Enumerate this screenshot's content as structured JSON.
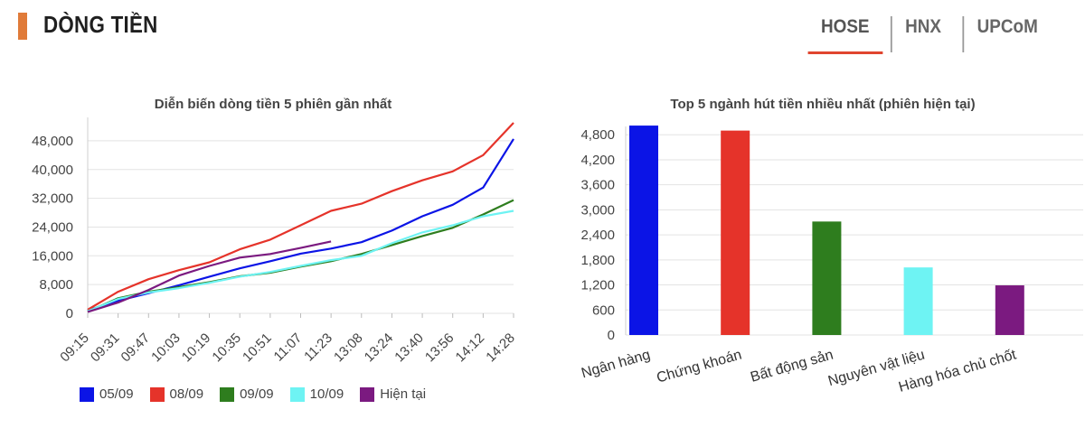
{
  "header": {
    "title": "DÒNG TIỀN",
    "tabs": [
      {
        "label": "HOSE",
        "active": true
      },
      {
        "label": "HNX",
        "active": false
      },
      {
        "label": "UPCoM",
        "active": false
      }
    ]
  },
  "colors": {
    "accent": "#e07b39",
    "active_tab": "#e0452f"
  },
  "chart_data": [
    {
      "type": "line",
      "title": "Diễn biến dòng tiền 5 phiên gần nhất",
      "xlabel": "",
      "ylabel": "",
      "ylim": [
        0,
        52000
      ],
      "yticks": [
        0,
        8000,
        16000,
        24000,
        32000,
        40000,
        48000
      ],
      "ytick_labels": [
        "0",
        "8,000",
        "16,000",
        "24,000",
        "32,000",
        "40,000",
        "48,000"
      ],
      "x_tick_labels": [
        "09:15",
        "09:31",
        "09:47",
        "10:03",
        "10:19",
        "10:35",
        "10:51",
        "11:07",
        "11:23",
        "13:08",
        "13:24",
        "13:40",
        "13:56",
        "14:12",
        "14:28"
      ],
      "legend": "bottom",
      "series": [
        {
          "name": "05/09",
          "color": "#0b14e6",
          "values": [
            800,
            3500,
            5600,
            7800,
            10200,
            12500,
            14500,
            16600,
            18000,
            19800,
            23000,
            27000,
            30200,
            35000,
            48500
          ]
        },
        {
          "name": "08/09",
          "color": "#e5332a",
          "values": [
            1000,
            6000,
            9500,
            12000,
            14200,
            17800,
            20500,
            24500,
            28500,
            30500,
            34000,
            37000,
            39500,
            44000,
            53000
          ]
        },
        {
          "name": "09/09",
          "color": "#2e7d1e",
          "values": [
            500,
            4200,
            6000,
            7300,
            8700,
            10300,
            11300,
            13000,
            14500,
            16500,
            19000,
            21500,
            23800,
            27500,
            31500
          ]
        },
        {
          "name": "10/09",
          "color": "#6ef3f3",
          "values": [
            600,
            4000,
            5800,
            7000,
            8500,
            10200,
            11500,
            13200,
            14800,
            16000,
            19500,
            22500,
            24500,
            27000,
            28500
          ]
        },
        {
          "name": "Hiện tại",
          "color": "#7b1a80",
          "values": [
            400,
            3000,
            6500,
            10500,
            13200,
            15500,
            16500,
            18200,
            20000
          ]
        }
      ]
    },
    {
      "type": "bar",
      "title": "Top 5 ngành hút tiền nhiều nhất (phiên hiện tại)",
      "xlabel": "",
      "ylabel": "",
      "ylim": [
        0,
        5000
      ],
      "yticks": [
        0,
        600,
        1200,
        1800,
        2400,
        3000,
        3600,
        4200,
        4800
      ],
      "ytick_labels": [
        "0",
        "600",
        "1,200",
        "1,800",
        "2,400",
        "3,000",
        "3,600",
        "4,200",
        "4,800"
      ],
      "categories": [
        "Ngân hàng",
        "Chứng khoán",
        "Bất động sản",
        "Nguyên vật liệu",
        "Hàng hóa chủ chốt"
      ],
      "values": [
        5020,
        4900,
        2720,
        1620,
        1190
      ],
      "bar_colors": [
        "#0b14e6",
        "#e5332a",
        "#2e7d1e",
        "#6ef3f3",
        "#7b1a80"
      ]
    }
  ]
}
